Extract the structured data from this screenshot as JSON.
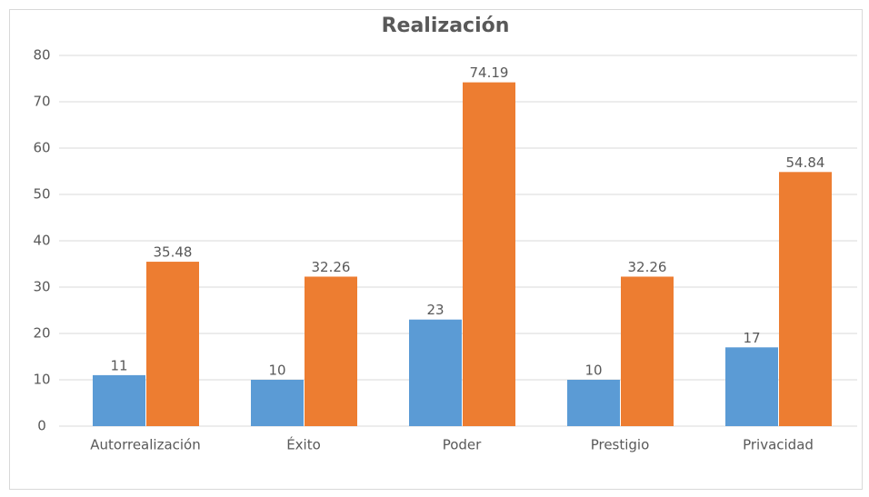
{
  "chart_data": {
    "type": "bar",
    "title": "Realización",
    "categories": [
      "Autorrealización",
      "Éxito",
      "Poder",
      "Prestigio",
      "Privacidad"
    ],
    "series": [
      {
        "color": "#5b9bd5",
        "values": [
          11,
          10,
          23,
          10,
          17
        ]
      },
      {
        "color": "#ed7d31",
        "values": [
          35.48,
          32.26,
          74.19,
          32.26,
          54.84
        ]
      }
    ],
    "ylim": [
      0,
      80
    ],
    "yticks": [
      0,
      10,
      20,
      30,
      40,
      50,
      60,
      70,
      80
    ],
    "grid": true
  }
}
